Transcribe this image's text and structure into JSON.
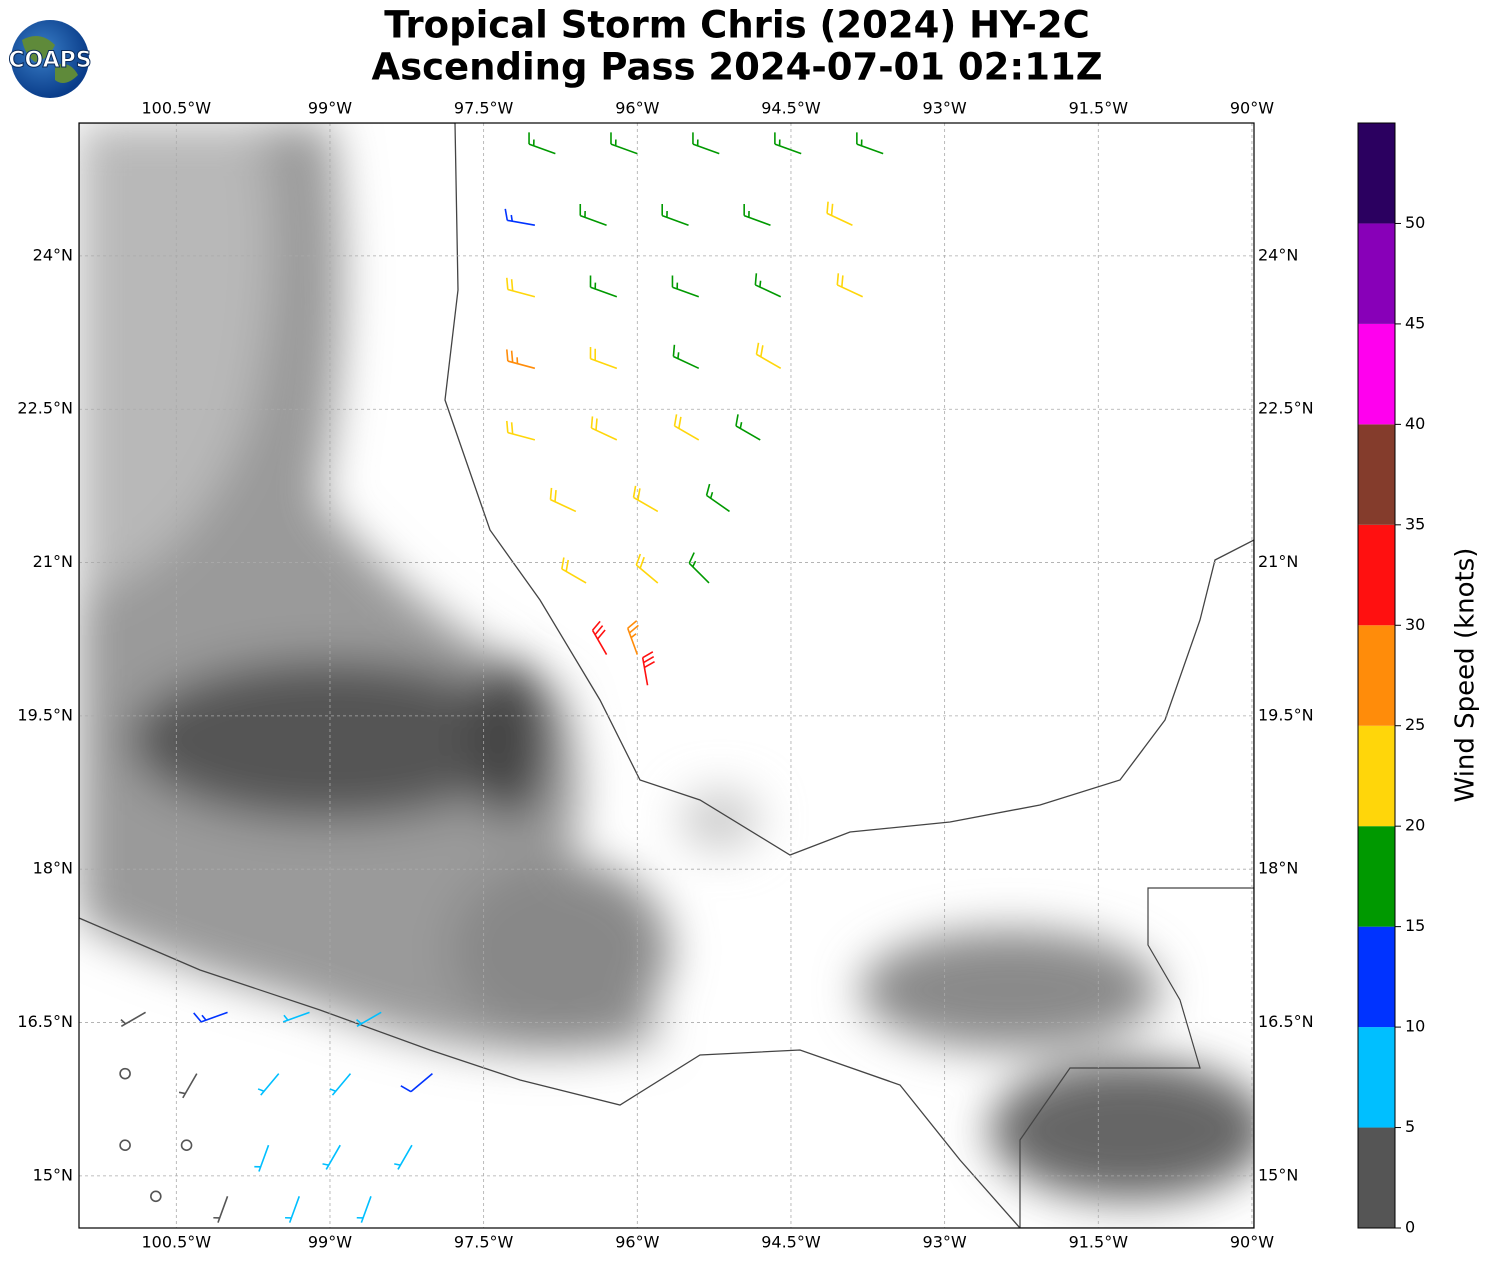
{
  "logo": "COAPS",
  "map_data": {
    "type": "wind-barb-map",
    "title": [
      "Tropical Storm Chris (2024) HY-2C",
      "Ascending Pass 2024-07-01 02:11Z"
    ],
    "xlim": [
      -101.45,
      -89.98
    ],
    "ylim": [
      14.49,
      25.3
    ],
    "xticks": [
      {
        "value": -100.5,
        "label": "100.5°W"
      },
      {
        "value": -99,
        "label": "99°W"
      },
      {
        "value": -97.5,
        "label": "97.5°W"
      },
      {
        "value": -96,
        "label": "96°W"
      },
      {
        "value": -94.5,
        "label": "94.5°W"
      },
      {
        "value": -93,
        "label": "93°W"
      },
      {
        "value": -91.5,
        "label": "91.5°W"
      },
      {
        "value": -90,
        "label": "90°W"
      }
    ],
    "yticks": [
      {
        "value": 15,
        "label": "15°N"
      },
      {
        "value": 16.5,
        "label": "16.5°N"
      },
      {
        "value": 18,
        "label": "18°N"
      },
      {
        "value": 19.5,
        "label": "19.5°N"
      },
      {
        "value": 21,
        "label": "21°N"
      },
      {
        "value": 22.5,
        "label": "22.5°N"
      },
      {
        "value": 24,
        "label": "24°N"
      }
    ],
    "grid": true,
    "barbs": [
      {
        "lon": -96.8,
        "lat": 25.0,
        "speed": 18,
        "dir": 290
      },
      {
        "lon": -96.0,
        "lat": 25.0,
        "speed": 17,
        "dir": 290
      },
      {
        "lon": -95.2,
        "lat": 25.0,
        "speed": 18,
        "dir": 290
      },
      {
        "lon": -94.4,
        "lat": 25.0,
        "speed": 17,
        "dir": 290
      },
      {
        "lon": -93.6,
        "lat": 25.0,
        "speed": 18,
        "dir": 290
      },
      {
        "lon": -97.0,
        "lat": 24.3,
        "speed": 14,
        "dir": 280
      },
      {
        "lon": -96.3,
        "lat": 24.3,
        "speed": 17,
        "dir": 290
      },
      {
        "lon": -95.5,
        "lat": 24.3,
        "speed": 18,
        "dir": 290
      },
      {
        "lon": -94.7,
        "lat": 24.3,
        "speed": 18,
        "dir": 290
      },
      {
        "lon": -93.9,
        "lat": 24.3,
        "speed": 22,
        "dir": 295
      },
      {
        "lon": -97.0,
        "lat": 23.6,
        "speed": 22,
        "dir": 285
      },
      {
        "lon": -96.2,
        "lat": 23.6,
        "speed": 18,
        "dir": 290
      },
      {
        "lon": -95.4,
        "lat": 23.6,
        "speed": 18,
        "dir": 290
      },
      {
        "lon": -94.6,
        "lat": 23.6,
        "speed": 18,
        "dir": 295
      },
      {
        "lon": -93.8,
        "lat": 23.6,
        "speed": 22,
        "dir": 295
      },
      {
        "lon": -97.0,
        "lat": 22.9,
        "speed": 27,
        "dir": 285
      },
      {
        "lon": -96.2,
        "lat": 22.9,
        "speed": 22,
        "dir": 290
      },
      {
        "lon": -95.4,
        "lat": 22.9,
        "speed": 18,
        "dir": 295
      },
      {
        "lon": -94.6,
        "lat": 22.9,
        "speed": 22,
        "dir": 300
      },
      {
        "lon": -97.0,
        "lat": 22.2,
        "speed": 22,
        "dir": 285
      },
      {
        "lon": -96.2,
        "lat": 22.2,
        "speed": 22,
        "dir": 295
      },
      {
        "lon": -95.4,
        "lat": 22.2,
        "speed": 22,
        "dir": 300
      },
      {
        "lon": -94.8,
        "lat": 22.2,
        "speed": 18,
        "dir": 300
      },
      {
        "lon": -96.6,
        "lat": 21.5,
        "speed": 22,
        "dir": 295
      },
      {
        "lon": -95.8,
        "lat": 21.5,
        "speed": 22,
        "dir": 300
      },
      {
        "lon": -95.1,
        "lat": 21.5,
        "speed": 18,
        "dir": 305
      },
      {
        "lon": -96.5,
        "lat": 20.8,
        "speed": 22,
        "dir": 300
      },
      {
        "lon": -95.8,
        "lat": 20.8,
        "speed": 22,
        "dir": 310
      },
      {
        "lon": -95.3,
        "lat": 20.8,
        "speed": 18,
        "dir": 315
      },
      {
        "lon": -96.3,
        "lat": 20.1,
        "speed": 32,
        "dir": 330
      },
      {
        "lon": -96.0,
        "lat": 20.1,
        "speed": 27,
        "dir": 340
      },
      {
        "lon": -95.9,
        "lat": 19.8,
        "speed": 32,
        "dir": 350
      },
      {
        "lon": -100.8,
        "lat": 16.6,
        "speed": 4,
        "dir": 240
      },
      {
        "lon": -100.0,
        "lat": 16.6,
        "speed": 13,
        "dir": 250
      },
      {
        "lon": -99.2,
        "lat": 16.6,
        "speed": 7,
        "dir": 250
      },
      {
        "lon": -98.5,
        "lat": 16.6,
        "speed": 8,
        "dir": 240
      },
      {
        "lon": -101.0,
        "lat": 16.0,
        "speed": 2,
        "dir": 0
      },
      {
        "lon": -100.3,
        "lat": 16.0,
        "speed": 3,
        "dir": 210
      },
      {
        "lon": -99.5,
        "lat": 16.0,
        "speed": 8,
        "dir": 220
      },
      {
        "lon": -98.8,
        "lat": 16.0,
        "speed": 7,
        "dir": 220
      },
      {
        "lon": -98.0,
        "lat": 16.0,
        "speed": 12,
        "dir": 230
      },
      {
        "lon": -101.0,
        "lat": 15.3,
        "speed": 1,
        "dir": 0
      },
      {
        "lon": -100.4,
        "lat": 15.3,
        "speed": 2,
        "dir": 0
      },
      {
        "lon": -99.6,
        "lat": 15.3,
        "speed": 6,
        "dir": 200
      },
      {
        "lon": -98.9,
        "lat": 15.3,
        "speed": 8,
        "dir": 210
      },
      {
        "lon": -98.2,
        "lat": 15.3,
        "speed": 7,
        "dir": 210
      },
      {
        "lon": -100.7,
        "lat": 14.8,
        "speed": 2,
        "dir": 0
      },
      {
        "lon": -100.0,
        "lat": 14.8,
        "speed": 3,
        "dir": 200
      },
      {
        "lon": -99.3,
        "lat": 14.8,
        "speed": 8,
        "dir": 200
      },
      {
        "lon": -98.6,
        "lat": 14.8,
        "speed": 7,
        "dir": 200
      }
    ],
    "colorbar": {
      "label": "Wind Speed (knots)",
      "bounds": [
        0,
        5,
        10,
        15,
        20,
        25,
        30,
        35,
        40,
        45,
        50,
        55
      ],
      "colors": [
        "#555555",
        "#00bfff",
        "#0033ff",
        "#009900",
        "#ffd60a",
        "#ff8c0a",
        "#ff1010",
        "#843c2c",
        "#ff00ee",
        "#8800b8",
        "#2b0060"
      ],
      "ticks": [
        0,
        5,
        10,
        15,
        20,
        25,
        30,
        35,
        40,
        45,
        50
      ]
    }
  }
}
